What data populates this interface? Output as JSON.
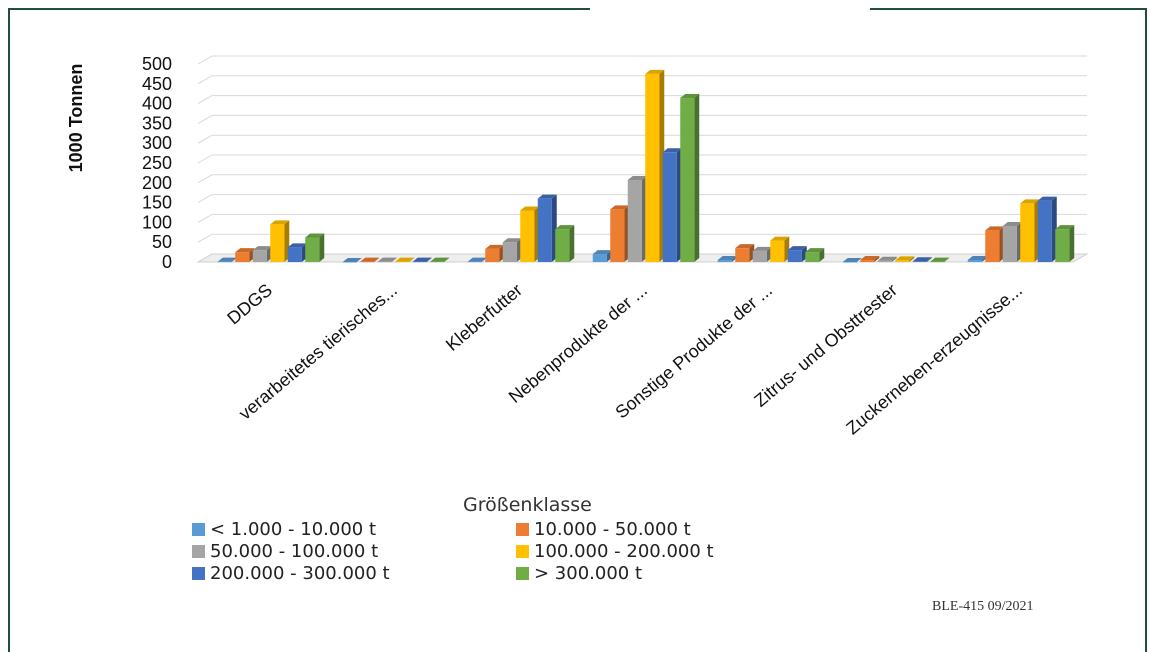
{
  "source_note": "BLE-415 09/2021",
  "chart_data": {
    "type": "bar",
    "title": "",
    "ylabel": "1000 Tonnen",
    "xlabel": "",
    "ylim": [
      0,
      500
    ],
    "yticks": [
      0,
      50,
      100,
      150,
      200,
      250,
      300,
      350,
      400,
      450,
      500
    ],
    "grid": true,
    "legend_title": "Größenklasse",
    "legend_position": "bottom",
    "categories": [
      "DDGS",
      "verarbeitetes tierisches...",
      "Kleberfutter",
      "Nebenprodukte der ...",
      "Sonstige Produkte der ...",
      "Zitrus- und Obsttrester",
      "Zuckerneben-erzeugnisse..."
    ],
    "series": [
      {
        "name": "< 1.000 - 10.000 t",
        "color": "#5b9bd5",
        "values": [
          1,
          0,
          1,
          20,
          5,
          0,
          5
        ]
      },
      {
        "name": "10.000 - 50.000 t",
        "color": "#ed7d31",
        "values": [
          25,
          1,
          33,
          133,
          35,
          5,
          80
        ]
      },
      {
        "name": "50.000 - 100.000 t",
        "color": "#a5a5a5",
        "values": [
          30,
          1,
          50,
          207,
          28,
          3,
          91
        ]
      },
      {
        "name": "100.000 - 200.000 t",
        "color": "#ffc000",
        "values": [
          95,
          1,
          130,
          475,
          54,
          4,
          148
        ]
      },
      {
        "name": "200.000 - 300.000 t",
        "color": "#4472c4",
        "values": [
          37,
          1,
          160,
          277,
          30,
          2,
          155
        ]
      },
      {
        "name": "> 300.000 t",
        "color": "#70ad47",
        "values": [
          62,
          1,
          83,
          414,
          25,
          1,
          83
        ]
      }
    ]
  }
}
